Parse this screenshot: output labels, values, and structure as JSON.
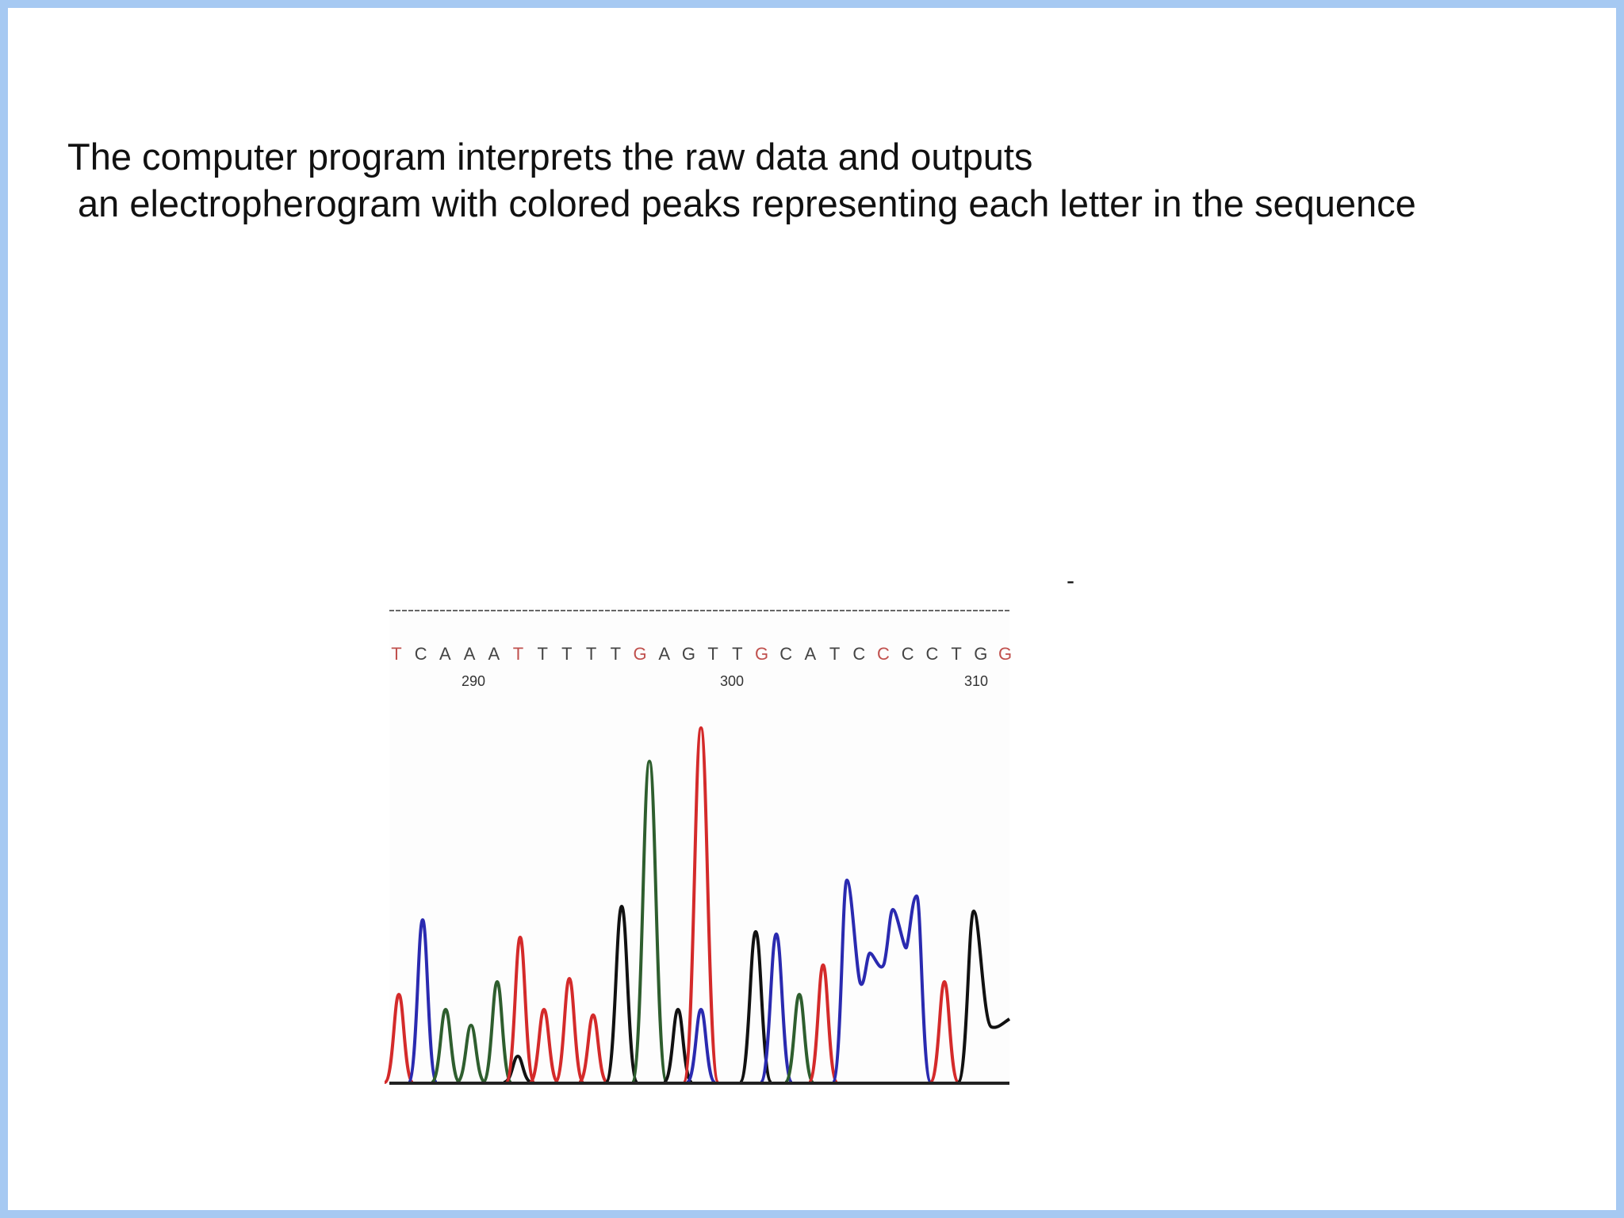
{
  "slide": {
    "text_lines": [
      "The computer program interprets the raw data and outputs",
      "an electropherogram with colored peaks representing each letter in the sequence"
    ],
    "marker": "-",
    "electropherogram": {
      "sequence": [
        "T",
        "C",
        "A",
        "A",
        "A",
        "T",
        "T",
        "T",
        "T",
        "T",
        "G",
        "A",
        "G",
        "T",
        "T",
        "G",
        "C",
        "A",
        "T",
        "C",
        "C",
        "C",
        "C",
        "T",
        "G",
        "G"
      ],
      "positions": [
        "290",
        "300",
        "310"
      ]
    }
  }
}
